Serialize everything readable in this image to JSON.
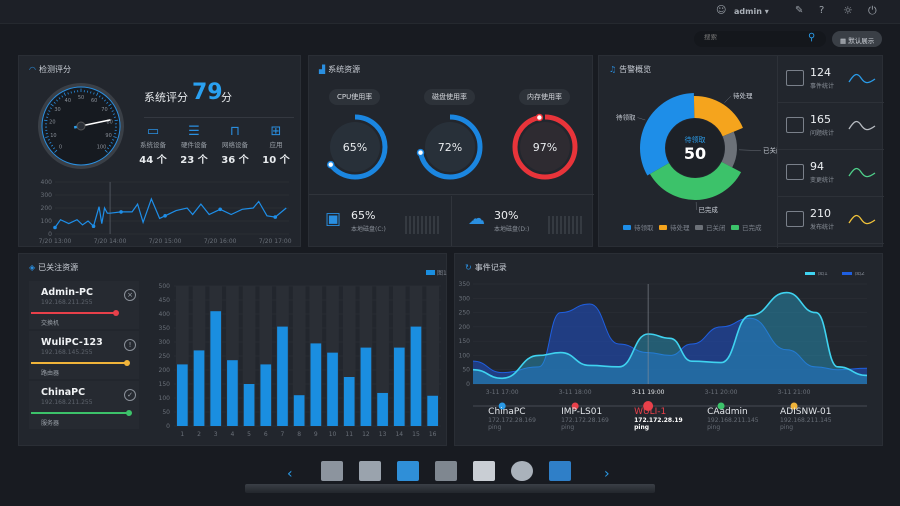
{
  "topbar": {
    "user": "admin",
    "icons": [
      "user-icon",
      "edit-icon",
      "help-icon",
      "brightness-icon",
      "power-icon"
    ]
  },
  "toolbar": {
    "search_placeholder": "搜索",
    "default_view": "默认展示"
  },
  "score": {
    "title": "检测评分",
    "label": "系统评分",
    "value": "79",
    "unit": "分",
    "gauge_value": 79,
    "gauge_ticks": [
      "0",
      "10",
      "20",
      "30",
      "40",
      "50",
      "60",
      "70",
      "80",
      "90",
      "100"
    ],
    "devices": [
      {
        "icon": "monitor-icon",
        "label": "系统设备",
        "count": "44",
        "unit": "个"
      },
      {
        "icon": "server-icon",
        "label": "硬件设备",
        "count": "23",
        "unit": "个"
      },
      {
        "icon": "router-icon",
        "label": "网络设备",
        "count": "36",
        "unit": "个"
      },
      {
        "icon": "apps-icon",
        "label": "应用",
        "count": "10",
        "unit": "个"
      }
    ]
  },
  "chart_data": [
    {
      "type": "line",
      "title": "",
      "ylim": [
        0,
        400
      ],
      "yticks": [
        "0",
        "100",
        "200",
        "300",
        "400"
      ],
      "xticks": [
        "7/20 13:00",
        "7/20 14:00",
        "7/20 15:00",
        "7/20 16:00",
        "7/20 17:00"
      ],
      "x": [
        13.0,
        13.1,
        13.25,
        13.4,
        13.5,
        13.6,
        13.7,
        13.8,
        13.85,
        13.9,
        13.95,
        14.0,
        14.2,
        14.4,
        14.5,
        14.6,
        14.75,
        14.9,
        15.0,
        15.2,
        15.4,
        15.5,
        15.65,
        15.8,
        16.0,
        16.2,
        16.4,
        16.6,
        16.7,
        16.85,
        17.0,
        17.2
      ],
      "values": [
        50,
        110,
        80,
        110,
        70,
        100,
        60,
        210,
        80,
        200,
        160,
        160,
        170,
        170,
        230,
        90,
        270,
        120,
        140,
        180,
        200,
        150,
        230,
        150,
        190,
        150,
        190,
        200,
        250,
        140,
        130,
        200
      ]
    },
    {
      "type": "bar",
      "legend": [
        "图1"
      ],
      "categories": [
        "1",
        "2",
        "3",
        "4",
        "5",
        "6",
        "7",
        "8",
        "9",
        "10",
        "11",
        "12",
        "13",
        "14",
        "15",
        "16"
      ],
      "values": [
        220,
        270,
        410,
        235,
        150,
        220,
        355,
        110,
        295,
        262,
        175,
        280,
        118,
        280,
        355,
        108
      ],
      "ylim": [
        0,
        500
      ],
      "yticks": [
        "0",
        "50",
        "100",
        "150",
        "200",
        "250",
        "300",
        "350",
        "400",
        "450",
        "500"
      ],
      "color": "#1a8ee0"
    },
    {
      "type": "area",
      "legend": [
        "图1",
        "图2"
      ],
      "ylim": [
        0,
        350
      ],
      "yticks": [
        "0",
        "50",
        "100",
        "150",
        "200",
        "250",
        "300",
        "350"
      ],
      "xticks": [
        "3-11 17:00",
        "3-11 18:00",
        "3-11 19:00",
        "3-11 20:00",
        "3-11 21:00"
      ],
      "x": [
        16.6,
        17.0,
        17.5,
        17.8,
        18.2,
        18.6,
        19.0,
        19.3,
        19.6,
        20.0,
        20.4,
        20.9,
        21.3,
        21.6,
        22.0
      ],
      "series": [
        {
          "name": "图1",
          "color": "#3fd3f0",
          "values": [
            50,
            20,
            100,
            110,
            65,
            60,
            175,
            160,
            80,
            75,
            240,
            320,
            250,
            60,
            30
          ]
        },
        {
          "name": "图2",
          "color": "#1f5fe0",
          "values": [
            80,
            40,
            60,
            250,
            280,
            140,
            110,
            100,
            140,
            200,
            230,
            120,
            60,
            50,
            55
          ]
        }
      ]
    },
    {
      "type": "pie",
      "title": "待领取",
      "center_value": "50",
      "categories": [
        "待领取",
        "待处理",
        "已关闭",
        "已完成"
      ],
      "values": [
        33,
        19,
        14,
        34
      ],
      "colors": [
        "#1e8ee8",
        "#f5a41d",
        "#6c7178",
        "#3cc26a"
      ]
    }
  ],
  "resources": {
    "title": "系统资源",
    "gauges": [
      {
        "label": "CPU使用率",
        "value": "65%",
        "pct": 65,
        "color": "#1b86e0"
      },
      {
        "label": "磁盘使用率",
        "value": "72%",
        "pct": 72,
        "color": "#1b86e0"
      },
      {
        "label": "内存使用率",
        "value": "97%",
        "pct": 97,
        "color": "#e8343a"
      }
    ],
    "disks": [
      {
        "icon": "floppy-disk-icon",
        "value": "65%",
        "label": "本地磁盘(C:)"
      },
      {
        "icon": "cloud-upload-icon",
        "value": "30%",
        "label": "本地磁盘(D:)"
      }
    ]
  },
  "alerts": {
    "title": "告警概览",
    "stats": [
      {
        "icon": "calendar-icon",
        "value": "124",
        "label": "事件统计",
        "color": "#2a9be8"
      },
      {
        "icon": "question-window-icon",
        "value": "165",
        "label": "问题统计",
        "color": "#b7bbc1"
      },
      {
        "icon": "refresh-window-icon",
        "value": "94",
        "label": "变更统计",
        "color": "#4fd08a"
      },
      {
        "icon": "upload-window-icon",
        "value": "210",
        "label": "发布统计",
        "color": "#f0c23a"
      }
    ]
  },
  "watched": {
    "title": "已关注资源",
    "items": [
      {
        "name": "Admin-PC",
        "ip": "192.168.211.255",
        "type": "交换机",
        "status": "error",
        "color": "#e8404a",
        "level": 0.78
      },
      {
        "name": "WuliPC-123",
        "ip": "192.168.145.255",
        "type": "路由器",
        "status": "warning",
        "color": "#f0b43a",
        "level": 0.88
      },
      {
        "name": "ChinaPC",
        "ip": "192.168.211.255",
        "type": "服务器",
        "status": "ok",
        "color": "#3cc26a",
        "level": 0.9
      }
    ]
  },
  "events": {
    "title": "事件记录",
    "nodes": [
      {
        "name": "ChinaPC",
        "ip": "172.172.28.169",
        "proto": "ping",
        "color": "#2a9be8"
      },
      {
        "name": "IMP-LS01",
        "ip": "172.172.28.169",
        "proto": "ping",
        "color": "#e8404a"
      },
      {
        "name": "WULI-1",
        "ip": "172.172.28.19",
        "proto": "ping",
        "color": "#e8404a",
        "active": true
      },
      {
        "name": "CAadmin",
        "ip": "192.168.211.145",
        "proto": "ping",
        "color": "#3cc26a"
      },
      {
        "name": "ADISNW-01",
        "ip": "192.168.211.145",
        "proto": "ping",
        "color": "#f0b43a"
      }
    ]
  },
  "dock": {
    "items": [
      "control-panel-icon",
      "folder-icon",
      "monitor-icon",
      "network-icon",
      "toolbox-icon",
      "settings-gear-icon",
      "laptop-icon"
    ]
  }
}
